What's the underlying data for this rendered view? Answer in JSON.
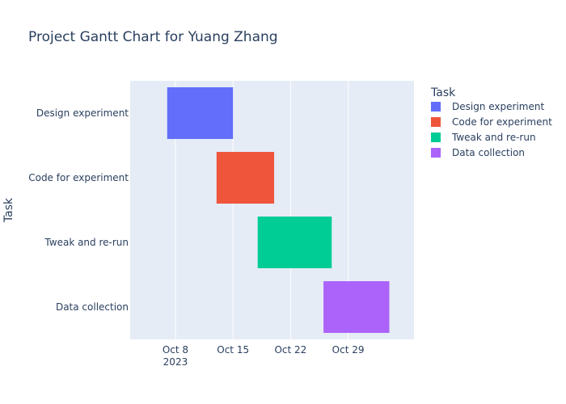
{
  "chart_data": {
    "type": "bar",
    "orientation": "horizontal",
    "title": "Project Gantt Chart for Yuang Zhang",
    "xlabel": "",
    "ylabel": "Task",
    "legend": {
      "title": "Task",
      "placement": "right"
    },
    "grid": true,
    "xlim": [
      "2023-10-02T12:00",
      "2023-11-06T00:00"
    ],
    "x_ticks": [
      {
        "date": "2023-10-08",
        "label": "Oct 8",
        "sublabel": "2023"
      },
      {
        "date": "2023-10-15",
        "label": "Oct 15",
        "sublabel": ""
      },
      {
        "date": "2023-10-22",
        "label": "Oct 22",
        "sublabel": ""
      },
      {
        "date": "2023-10-29",
        "label": "Oct 29",
        "sublabel": ""
      }
    ],
    "categories": [
      "Design experiment",
      "Code for experiment",
      "Tweak and re-run",
      "Data collection"
    ],
    "series": [
      {
        "name": "Design experiment",
        "color": "#636efa",
        "start": "2023-10-07",
        "end": "2023-10-15"
      },
      {
        "name": "Code for experiment",
        "color": "#ef553b",
        "start": "2023-10-13",
        "end": "2023-10-20"
      },
      {
        "name": "Tweak and re-run",
        "color": "#00cc96",
        "start": "2023-10-18",
        "end": "2023-10-27"
      },
      {
        "name": "Data collection",
        "color": "#ab63fa",
        "start": "2023-10-26",
        "end": "2023-11-03"
      }
    ]
  },
  "colors": {
    "plot_bg": "#e5ecf6",
    "grid": "#ffffff",
    "text": "#2a3f5f"
  }
}
